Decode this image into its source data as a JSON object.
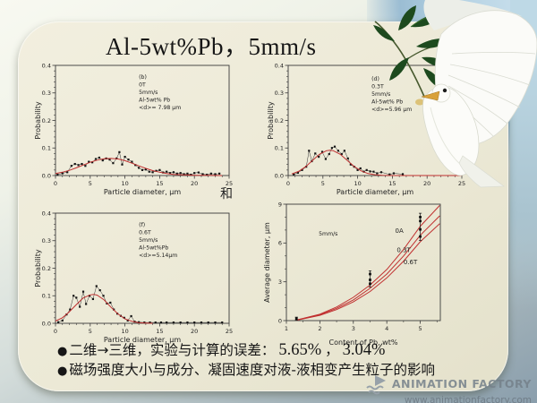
{
  "slide": {
    "title": "Al-5wt%Pb，5mm/s",
    "middle_connector": "和",
    "bullets": [
      {
        "prefix": "二维→三维，实验与计算的误差：",
        "value1": "5.65%",
        "separator": "，",
        "value2": "3.04%"
      },
      {
        "prefix": "磁场强度大小与成分、凝固速度对液-液相变产生粒子的影响",
        "value1": "",
        "separator": "",
        "value2": ""
      }
    ]
  },
  "watermark": {
    "line1": "ANIMATION FACTORY",
    "line2": "www.animationfactory.com"
  },
  "images": {
    "dove": "white-dove-with-olive-branch",
    "logo": "animation-factory-logo"
  },
  "colors": {
    "panel": "#ece9d6",
    "fit_line": "#c03030",
    "data_points": "#111111",
    "sky": "#aecde0",
    "bg_bottom": "#8ea2af",
    "leaf_green": "#1d4a1e"
  },
  "chart_data": [
    {
      "type": "scatter",
      "xlabel": "Particle diameter, μm",
      "ylabel": "Probability",
      "xlim": [
        0,
        25
      ],
      "ylim": [
        0,
        0.4
      ],
      "xticks": [
        0,
        5,
        10,
        15,
        20,
        25
      ],
      "yticks": [
        0,
        0.1,
        0.2,
        0.3,
        0.4
      ],
      "xminor": 1,
      "yminor": 0.02,
      "xdec": 0,
      "ydec": 1,
      "annotation": {
        "fx": 0.48,
        "fy": 0.12,
        "lines": [
          "(b)",
          "0T",
          "5mm/s",
          "Al-5wt% Pb",
          "<d>= 7.98 μm"
        ]
      },
      "series": [
        {
          "name": "measured",
          "type": "scatterline",
          "color": "#151515",
          "data": [
            [
              0.3,
              0.003
            ],
            [
              1,
              0.008
            ],
            [
              1.7,
              0.012
            ],
            [
              2.3,
              0.035
            ],
            [
              2.8,
              0.042
            ],
            [
              3.3,
              0.038
            ],
            [
              3.8,
              0.042
            ],
            [
              4.3,
              0.035
            ],
            [
              4.8,
              0.05
            ],
            [
              5.3,
              0.048
            ],
            [
              5.8,
              0.06
            ],
            [
              6.3,
              0.065
            ],
            [
              6.8,
              0.055
            ],
            [
              7.3,
              0.062
            ],
            [
              7.8,
              0.058
            ],
            [
              8.3,
              0.045
            ],
            [
              8.8,
              0.062
            ],
            [
              9.2,
              0.085
            ],
            [
              9.6,
              0.04
            ],
            [
              10,
              0.068
            ],
            [
              10.5,
              0.058
            ],
            [
              11,
              0.05
            ],
            [
              11.5,
              0.038
            ],
            [
              12,
              0.028
            ],
            [
              12.5,
              0.02
            ],
            [
              13,
              0.022
            ],
            [
              13.5,
              0.014
            ],
            [
              14,
              0.012
            ],
            [
              14.5,
              0.017
            ],
            [
              15,
              0.02
            ],
            [
              15.5,
              0.011
            ],
            [
              16,
              0.014
            ],
            [
              16.5,
              0.009
            ],
            [
              17,
              0.012
            ],
            [
              17.5,
              0.007
            ],
            [
              18,
              0.009
            ],
            [
              18.5,
              0.005
            ],
            [
              19,
              0.007
            ],
            [
              19.5,
              0.003
            ],
            [
              20,
              0.009
            ],
            [
              20.6,
              0.011
            ],
            [
              21.2,
              0.005
            ],
            [
              21.8,
              0.003
            ],
            [
              22.4,
              0.007
            ],
            [
              23,
              0.005
            ],
            [
              23.6,
              0.007
            ]
          ]
        },
        {
          "name": "gaussian-fit",
          "type": "line",
          "color": "#c03030",
          "data": [
            [
              0,
              0.007
            ],
            [
              1,
              0.012
            ],
            [
              2,
              0.019
            ],
            [
              3,
              0.028
            ],
            [
              4,
              0.038
            ],
            [
              5,
              0.048
            ],
            [
              6,
              0.056
            ],
            [
              7,
              0.061
            ],
            [
              8,
              0.062
            ],
            [
              9,
              0.06
            ],
            [
              10,
              0.054
            ],
            [
              11,
              0.045
            ],
            [
              12,
              0.035
            ],
            [
              13,
              0.026
            ],
            [
              14,
              0.018
            ],
            [
              15,
              0.012
            ],
            [
              16,
              0.007
            ],
            [
              17,
              0.004
            ],
            [
              18,
              0.003
            ],
            [
              19,
              0.002
            ],
            [
              20,
              0.001
            ],
            [
              22,
              0.001
            ],
            [
              24,
              0
            ]
          ]
        }
      ]
    },
    {
      "type": "scatter",
      "xlabel": "Particle diameter, μm",
      "ylabel": "Probability",
      "xlim": [
        0,
        25
      ],
      "ylim": [
        0,
        0.4
      ],
      "xticks": [
        0,
        5,
        10,
        15,
        20,
        25
      ],
      "yticks": [
        0,
        0.1,
        0.2,
        0.3,
        0.4
      ],
      "xminor": 1,
      "yminor": 0.02,
      "xdec": 0,
      "ydec": 1,
      "annotation": {
        "fx": 0.48,
        "fy": 0.14,
        "lines": [
          "(d)",
          "0.3T",
          "5mm/s",
          "Al-5wt% Pb",
          "<d>=5.96 μm"
        ]
      },
      "series": [
        {
          "name": "measured",
          "type": "scatterline",
          "color": "#151515",
          "data": [
            [
              0.8,
              0.004
            ],
            [
              1.4,
              0.01
            ],
            [
              2,
              0.02
            ],
            [
              2.6,
              0.032
            ],
            [
              3,
              0.09
            ],
            [
              3.4,
              0.052
            ],
            [
              3.9,
              0.08
            ],
            [
              4.4,
              0.068
            ],
            [
              4.9,
              0.086
            ],
            [
              5.4,
              0.06
            ],
            [
              5.9,
              0.078
            ],
            [
              6.3,
              0.1
            ],
            [
              6.7,
              0.105
            ],
            [
              7.2,
              0.09
            ],
            [
              7.7,
              0.078
            ],
            [
              8.1,
              0.09
            ],
            [
              8.6,
              0.062
            ],
            [
              9,
              0.04
            ],
            [
              9.5,
              0.032
            ],
            [
              10,
              0.02
            ],
            [
              10.4,
              0.026
            ],
            [
              10.9,
              0.014
            ],
            [
              11.3,
              0.02
            ],
            [
              11.8,
              0.015
            ],
            [
              12.3,
              0.014
            ],
            [
              12.8,
              0.008
            ],
            [
              13.4,
              0.012
            ],
            [
              14.6,
              0.004
            ],
            [
              15.2,
              0.008
            ],
            [
              16.5,
              0.005
            ]
          ]
        },
        {
          "name": "gaussian-fit",
          "type": "line",
          "color": "#c03030",
          "data": [
            [
              0.5,
              0.006
            ],
            [
              1.5,
              0.015
            ],
            [
              2.5,
              0.032
            ],
            [
              3.5,
              0.055
            ],
            [
              4.5,
              0.077
            ],
            [
              5.5,
              0.09
            ],
            [
              6,
              0.092
            ],
            [
              6.5,
              0.09
            ],
            [
              7.5,
              0.077
            ],
            [
              8.5,
              0.055
            ],
            [
              9.5,
              0.033
            ],
            [
              10.5,
              0.017
            ],
            [
              11.5,
              0.007
            ],
            [
              12.5,
              0.003
            ],
            [
              13.5,
              0.001
            ],
            [
              15,
              0
            ],
            [
              20,
              0
            ],
            [
              25,
              0
            ]
          ]
        }
      ]
    },
    {
      "type": "scatter",
      "xlabel": "Particle diameter, μm",
      "ylabel": "Probability",
      "xlim": [
        0,
        25
      ],
      "ylim": [
        0,
        0.4
      ],
      "xticks": [
        0,
        5,
        10,
        15,
        20,
        25
      ],
      "yticks": [
        0,
        0.1,
        0.2,
        0.3,
        0.4
      ],
      "xminor": 1,
      "yminor": 0.02,
      "xdec": 0,
      "ydec": 1,
      "annotation": {
        "fx": 0.48,
        "fy": 0.12,
        "lines": [
          "(f)",
          "0.6T",
          "5mm/s",
          "Al-5wt%Pb",
          "<d>=5.14μm"
        ]
      },
      "series": [
        {
          "name": "measured",
          "type": "scatterline",
          "color": "#151515",
          "data": [
            [
              0.4,
              0.004
            ],
            [
              1,
              0.01
            ],
            [
              1.6,
              0.032
            ],
            [
              2.1,
              0.05
            ],
            [
              2.6,
              0.1
            ],
            [
              3,
              0.093
            ],
            [
              3.5,
              0.06
            ],
            [
              4,
              0.115
            ],
            [
              4.4,
              0.07
            ],
            [
              4.9,
              0.1
            ],
            [
              5.4,
              0.088
            ],
            [
              5.9,
              0.135
            ],
            [
              6.4,
              0.12
            ],
            [
              6.9,
              0.1
            ],
            [
              7.4,
              0.072
            ],
            [
              7.9,
              0.075
            ],
            [
              8.4,
              0.05
            ],
            [
              8.9,
              0.035
            ],
            [
              9.4,
              0.027
            ],
            [
              9.9,
              0.02
            ],
            [
              10.4,
              0.01
            ],
            [
              10.9,
              0.026
            ],
            [
              11.4,
              0.006
            ],
            [
              12,
              0.004
            ],
            [
              12.8,
              0.003
            ],
            [
              13.6,
              0.003
            ],
            [
              14.4,
              0.003
            ],
            [
              15.2,
              0.003
            ],
            [
              16,
              0.003
            ],
            [
              17,
              0.003
            ],
            [
              18,
              0.003
            ],
            [
              19,
              0.003
            ],
            [
              20,
              0.003
            ],
            [
              21,
              0.003
            ],
            [
              22,
              0.003
            ],
            [
              23,
              0.003
            ],
            [
              24,
              0.003
            ]
          ]
        },
        {
          "name": "gaussian-fit",
          "type": "line",
          "color": "#c03030",
          "data": [
            [
              0,
              0.008
            ],
            [
              1,
              0.02
            ],
            [
              2,
              0.042
            ],
            [
              3,
              0.068
            ],
            [
              4,
              0.092
            ],
            [
              5,
              0.103
            ],
            [
              5.5,
              0.105
            ],
            [
              6,
              0.102
            ],
            [
              7,
              0.085
            ],
            [
              8,
              0.058
            ],
            [
              9,
              0.034
            ],
            [
              10,
              0.016
            ],
            [
              11,
              0.007
            ],
            [
              12,
              0.002
            ],
            [
              13,
              0.001
            ],
            [
              14,
              0
            ]
          ]
        }
      ]
    },
    {
      "type": "line",
      "xlabel": "Content of Pb, wt%",
      "ylabel": "Average diameter, μm",
      "xlim": [
        1,
        5.6
      ],
      "ylim": [
        0,
        9
      ],
      "xticks": [
        1,
        2,
        3,
        4,
        5
      ],
      "yticks": [
        0,
        3,
        6,
        9
      ],
      "xminor": 0.5,
      "yminor": 1,
      "xdec": 0,
      "ydec": 0,
      "annotation": {
        "fx": 0.21,
        "fy": 0.27,
        "lines": [
          "5mm/s"
        ]
      },
      "curve_labels": [
        {
          "text": "0A",
          "x": 4.25,
          "y": 6.8
        },
        {
          "text": "0.3T",
          "x": 4.3,
          "y": 5.3
        },
        {
          "text": "0.6T",
          "x": 4.5,
          "y": 4.35
        }
      ],
      "series": [
        {
          "name": "0A",
          "type": "line",
          "color": "#c03030",
          "data": [
            [
              1.3,
              0.05
            ],
            [
              2,
              0.5
            ],
            [
              2.5,
              1.05
            ],
            [
              3,
              1.8
            ],
            [
              3.5,
              2.75
            ],
            [
              4,
              3.95
            ],
            [
              4.5,
              5.5
            ],
            [
              5,
              7.3
            ],
            [
              5.58,
              8.9
            ]
          ]
        },
        {
          "name": "0.3T",
          "type": "line",
          "color": "#c03030",
          "data": [
            [
              1.3,
              0.04
            ],
            [
              2,
              0.45
            ],
            [
              2.5,
              0.95
            ],
            [
              3,
              1.6
            ],
            [
              3.5,
              2.5
            ],
            [
              4,
              3.6
            ],
            [
              4.5,
              5.0
            ],
            [
              5,
              6.6
            ],
            [
              5.58,
              8.1
            ]
          ]
        },
        {
          "name": "0.6T",
          "type": "line",
          "color": "#c03030",
          "data": [
            [
              1.3,
              0.03
            ],
            [
              2,
              0.4
            ],
            [
              2.5,
              0.85
            ],
            [
              3,
              1.45
            ],
            [
              3.5,
              2.25
            ],
            [
              4,
              3.3
            ],
            [
              4.5,
              4.6
            ],
            [
              5,
              6.1
            ],
            [
              5.58,
              7.5
            ]
          ]
        },
        {
          "name": "measured",
          "type": "scattererr",
          "color": "#111111",
          "groups": [
            {
              "x": 1.3,
              "ys": [
                0.15
              ],
              "err": 0.12
            },
            {
              "x": 3.5,
              "ys": [
                2.85,
                3.15,
                3.6
              ],
              "err": 0.25
            },
            {
              "x": 5.0,
              "ys": [
                6.5,
                7.05,
                7.7,
                8.0
              ],
              "err": 0.3
            }
          ]
        }
      ]
    }
  ]
}
